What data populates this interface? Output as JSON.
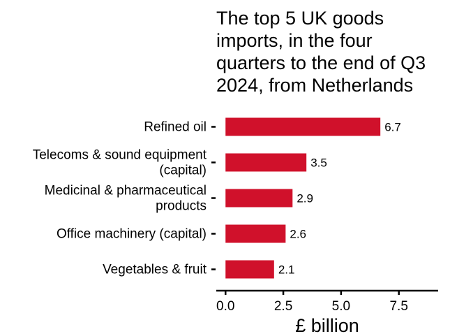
{
  "chart_data": {
    "type": "bar",
    "orientation": "horizontal",
    "title_lines": [
      "The top 5 UK goods",
      "imports, in the four",
      "quarters to the end of Q3",
      "2024, from Netherlands"
    ],
    "categories": [
      [
        "Refined oil"
      ],
      [
        "Telecoms & sound equipment",
        "(capital)"
      ],
      [
        "Medicinal & pharmaceutical",
        "products"
      ],
      [
        "Office machinery (capital)"
      ],
      [
        "Vegetables & fruit"
      ]
    ],
    "values": [
      6.7,
      3.5,
      2.9,
      2.6,
      2.1
    ],
    "value_labels": [
      "6.7",
      "3.5",
      "2.9",
      "2.6",
      "2.1"
    ],
    "xlabel": "£ billion",
    "ylabel": "",
    "xlim": [
      -0.4,
      9.2
    ],
    "xticks": [
      0.0,
      2.5,
      5.0,
      7.5
    ],
    "xtick_labels": [
      "0.0",
      "2.5",
      "5.0",
      "7.5"
    ],
    "bar_color": "#d0112b",
    "grid": false,
    "legend": "none"
  }
}
